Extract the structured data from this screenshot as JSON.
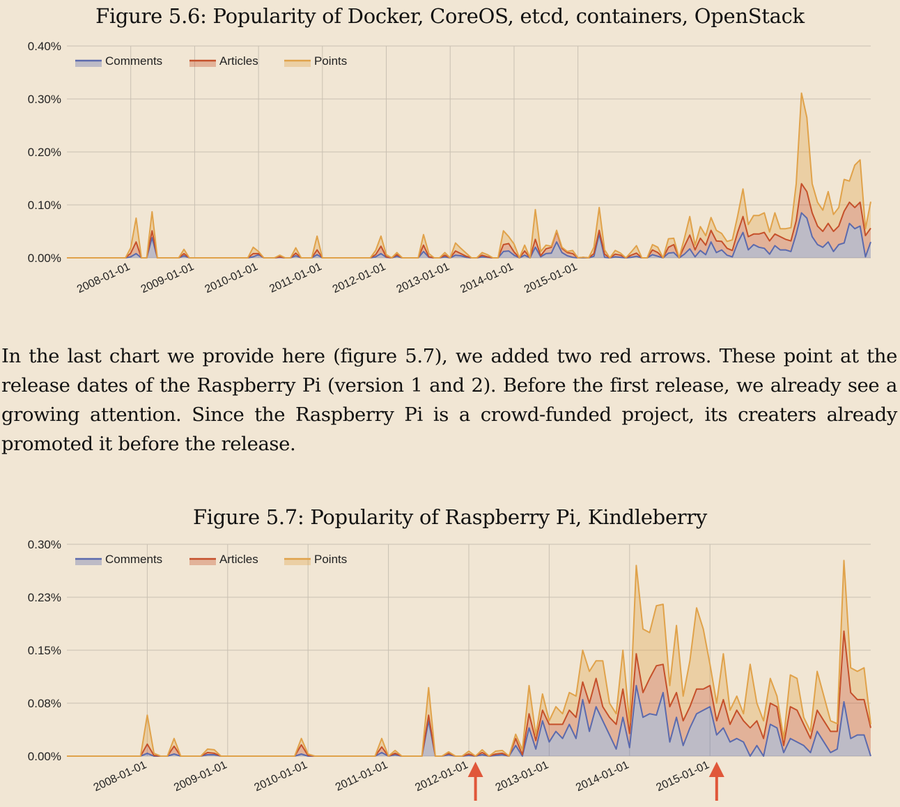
{
  "figure_1": {
    "title": "Figure 5.6: Popularity of Docker, CoreOS, etcd, containers, OpenStack"
  },
  "paragraph": "In the last chart we provide here (figure 5.7), we added two red arrows.  These point at the release dates of the Raspberry Pi (version 1 and 2).  Before the first release, we already see a growing attention.  Since the Raspberry Pi is a crowd-funded project, its creaters already promoted it before the release.",
  "figure_2": {
    "title": "Figure 5.7: Popularity of Raspberry Pi, Kindleberry"
  },
  "colors": {
    "background": "#f1e6d4",
    "grid": "#c9c0b2",
    "comments": "#5b6aad",
    "articles": "#c5502a",
    "points": "#e0a24a",
    "arrow": "#e0573a"
  },
  "chart_data": [
    {
      "type": "area",
      "stacked": true,
      "ylim": [
        0,
        0.4
      ],
      "yticks": [
        "0.40%",
        "0.30%",
        "0.20%",
        "0.10%",
        "0.00%"
      ],
      "yunit": "%",
      "x_start": "2007-01-01",
      "x_step": "1 month",
      "xticks": [
        "2008-01-01",
        "2009-01-01",
        "2010-01-01",
        "2011-01-01",
        "2012-01-01",
        "2013-01-01",
        "2014-01-01",
        "2015-01-01"
      ],
      "legend": [
        "Comments",
        "Articles",
        "Points"
      ],
      "legend_position": "top-left",
      "grid": true,
      "series": [
        {
          "name": "Comments",
          "values": [
            0,
            0,
            0,
            0,
            0,
            0,
            0,
            0,
            0,
            0,
            0,
            0,
            0.002,
            0.008,
            0,
            0,
            0.038,
            0,
            0,
            0,
            0,
            0,
            0.004,
            0,
            0,
            0,
            0,
            0,
            0,
            0,
            0,
            0,
            0,
            0,
            0,
            0.002,
            0.006,
            0,
            0,
            0,
            0.001,
            0,
            0,
            0.004,
            0,
            0,
            0,
            0.006,
            0,
            0,
            0,
            0,
            0,
            0,
            0,
            0,
            0,
            0,
            0.002,
            0.008,
            0.001,
            0,
            0.003,
            0,
            0,
            0,
            0,
            0.012,
            0.001,
            0,
            0,
            0.002,
            0,
            0.005,
            0.004,
            0.001,
            0,
            0,
            0.002,
            0.001,
            0,
            0,
            0.012,
            0.013,
            0.005,
            0,
            0.005,
            0,
            0.02,
            0.002,
            0.008,
            0.009,
            0.03,
            0.01,
            0.004,
            0.001,
            0,
            0,
            0,
            0.003,
            0.045,
            0.001,
            0,
            0.002,
            0.001,
            0,
            0.001,
            0.003,
            0,
            0,
            0.006,
            0.003,
            0,
            0.009,
            0.01,
            0,
            0.007,
            0.017,
            0.002,
            0.014,
            0.006,
            0.03,
            0.01,
            0.015,
            0.005,
            0.002,
            0.028,
            0.048,
            0.015,
            0.025,
            0.02,
            0.018,
            0.007,
            0.023,
            0.015,
            0.015,
            0.012,
            0.045,
            0.085,
            0.075,
            0.04,
            0.025,
            0.02,
            0.03,
            0.012,
            0.025,
            0.028,
            0.065,
            0.055,
            0.06,
            0.002,
            0.03
          ]
        },
        {
          "name": "Articles",
          "values": [
            0,
            0,
            0,
            0,
            0,
            0,
            0,
            0,
            0,
            0,
            0,
            0,
            0.007,
            0.022,
            0,
            0,
            0.013,
            0,
            0,
            0,
            0,
            0,
            0.004,
            0,
            0,
            0,
            0,
            0,
            0,
            0,
            0,
            0,
            0,
            0,
            0,
            0.006,
            0.002,
            0,
            0,
            0,
            0.001,
            0,
            0,
            0.005,
            0,
            0,
            0,
            0.009,
            0,
            0,
            0,
            0,
            0,
            0,
            0,
            0,
            0,
            0,
            0.004,
            0.014,
            0.001,
            0,
            0.003,
            0,
            0,
            0,
            0,
            0.012,
            0.001,
            0,
            0,
            0.003,
            0,
            0.008,
            0.004,
            0.002,
            0,
            0,
            0.003,
            0.001,
            0,
            0,
            0.013,
            0.014,
            0.006,
            0,
            0.008,
            0,
            0.015,
            0.002,
            0.009,
            0.011,
            0.02,
            0.008,
            0.006,
            0.007,
            0,
            0.001,
            0,
            0.005,
            0.007,
            0.006,
            0,
            0.005,
            0.004,
            0,
            0.004,
            0.006,
            0,
            0,
            0.009,
            0.007,
            0,
            0.011,
            0.015,
            0,
            0.015,
            0.026,
            0.013,
            0.023,
            0.018,
            0.022,
            0.022,
            0.016,
            0.013,
            0.012,
            0.02,
            0.03,
            0.025,
            0.02,
            0.025,
            0.03,
            0.025,
            0.022,
            0.025,
            0.02,
            0.02,
            0.025,
            0.055,
            0.05,
            0.045,
            0.035,
            0.03,
            0.035,
            0.038,
            0.035,
            0.06,
            0.04,
            0.04,
            0.045,
            0.04,
            0.026
          ]
        },
        {
          "name": "Points",
          "values": [
            0,
            0,
            0,
            0,
            0,
            0,
            0,
            0,
            0,
            0,
            0,
            0,
            0.01,
            0.045,
            0,
            0,
            0.036,
            0,
            0,
            0,
            0,
            0,
            0.008,
            0,
            0,
            0,
            0,
            0,
            0,
            0,
            0,
            0,
            0,
            0,
            0,
            0.012,
            0.004,
            0,
            0,
            0,
            0.003,
            0,
            0,
            0.01,
            0,
            0,
            0,
            0.026,
            0,
            0,
            0,
            0,
            0,
            0,
            0,
            0,
            0,
            0,
            0.008,
            0.019,
            0.004,
            0,
            0.004,
            0,
            0,
            0,
            0,
            0.02,
            0.006,
            0,
            0,
            0.005,
            0,
            0.015,
            0.01,
            0.006,
            0,
            0,
            0.005,
            0.004,
            0,
            0,
            0.026,
            0.013,
            0.015,
            0,
            0.011,
            0,
            0.056,
            0.008,
            0.007,
            0.002,
            0.002,
            0.002,
            0.002,
            0.006,
            0,
            0,
            0,
            0.012,
            0.043,
            0.008,
            0,
            0.007,
            0.004,
            0,
            0.006,
            0.014,
            0,
            0,
            0.01,
            0.01,
            0,
            0.016,
            0.012,
            0,
            0.015,
            0.035,
            0.009,
            0.022,
            0.018,
            0.024,
            0.02,
            0.015,
            0.013,
            0.02,
            0.031,
            0.052,
            0.023,
            0.035,
            0.035,
            0.037,
            0.017,
            0.04,
            0.015,
            0.02,
            0.025,
            0.07,
            0.171,
            0.14,
            0.055,
            0.045,
            0.04,
            0.06,
            0.032,
            0.035,
            0.06,
            0.04,
            0.08,
            0.08,
            0.013,
            0.05
          ]
        }
      ]
    },
    {
      "type": "area",
      "stacked": true,
      "ylim": [
        0,
        0.3
      ],
      "yticks": [
        "0.30%",
        "0.23%",
        "0.15%",
        "0.08%",
        "0.00%"
      ],
      "yunit": "%",
      "x_start": "2007-01-01",
      "x_step": "1 month",
      "xticks": [
        "2008-01-01",
        "2009-01-01",
        "2010-01-01",
        "2011-01-01",
        "2012-01-01",
        "2013-01-01",
        "2014-01-01",
        "2015-01-01"
      ],
      "legend": [
        "Comments",
        "Articles",
        "Points"
      ],
      "legend_position": "top-left",
      "grid": true,
      "annotations": [
        {
          "type": "arrow",
          "x": "2012-02-01"
        },
        {
          "type": "arrow",
          "x": "2015-02-01"
        }
      ],
      "series": [
        {
          "name": "Comments",
          "values": [
            0,
            0,
            0,
            0,
            0,
            0,
            0,
            0,
            0,
            0,
            0,
            0,
            0.004,
            0,
            0,
            0,
            0.003,
            0,
            0,
            0,
            0,
            0.002,
            0.002,
            0,
            0,
            0,
            0,
            0,
            0,
            0,
            0,
            0,
            0,
            0,
            0,
            0.003,
            0,
            0,
            0,
            0,
            0,
            0,
            0,
            0,
            0,
            0,
            0,
            0.005,
            0,
            0.002,
            0,
            0,
            0,
            0,
            0.05,
            0,
            0,
            0.002,
            0,
            0,
            0.001,
            0,
            0.002,
            0,
            0.001,
            0.002,
            0,
            0.015,
            0,
            0.04,
            0.01,
            0.05,
            0.02,
            0.035,
            0.025,
            0.045,
            0.025,
            0.08,
            0.035,
            0.07,
            0.05,
            0.03,
            0.01,
            0.055,
            0.012,
            0.1,
            0.055,
            0.06,
            0.058,
            0.09,
            0.02,
            0.055,
            0.015,
            0.04,
            0.06,
            0.065,
            0.07,
            0.03,
            0.04,
            0.02,
            0.025,
            0.02,
            0,
            0.015,
            0,
            0.045,
            0.04,
            0.005,
            0.025,
            0.02,
            0.015,
            0.005,
            0.035,
            0.02,
            0.005,
            0.01,
            0.077,
            0.025,
            0.03,
            0.03,
            0
          ]
        },
        {
          "name": "Articles",
          "values": [
            0,
            0,
            0,
            0,
            0,
            0,
            0,
            0,
            0,
            0,
            0,
            0,
            0.013,
            0.001,
            0,
            0,
            0.011,
            0,
            0,
            0,
            0,
            0.003,
            0.002,
            0,
            0,
            0,
            0,
            0,
            0,
            0,
            0,
            0,
            0,
            0,
            0,
            0.013,
            0.001,
            0,
            0,
            0,
            0,
            0,
            0,
            0,
            0,
            0,
            0,
            0.008,
            0,
            0.002,
            0,
            0,
            0,
            0,
            0.008,
            0,
            0,
            0.002,
            0,
            0,
            0.002,
            0,
            0.003,
            0,
            0.002,
            0.002,
            0,
            0.01,
            0.002,
            0.02,
            0.012,
            0.015,
            0.025,
            0.01,
            0.02,
            0.02,
            0.03,
            0.025,
            0.04,
            0.04,
            0.02,
            0.025,
            0.035,
            0.04,
            0.02,
            0.045,
            0.035,
            0.05,
            0.07,
            0.04,
            0.05,
            0.035,
            0.035,
            0.03,
            0.035,
            0.03,
            0.03,
            0.02,
            0.04,
            0.025,
            0.04,
            0.03,
            0.04,
            0.035,
            0.025,
            0.03,
            0.03,
            0.01,
            0.045,
            0.045,
            0.03,
            0.02,
            0.03,
            0.03,
            0.03,
            0.025,
            0.1,
            0.065,
            0.05,
            0.05,
            0.04
          ]
        },
        {
          "name": "Points",
          "values": [
            0,
            0,
            0,
            0,
            0,
            0,
            0,
            0,
            0,
            0,
            0,
            0,
            0.041,
            0.003,
            0,
            0,
            0.011,
            0,
            0,
            0,
            0,
            0.005,
            0.005,
            0,
            0,
            0,
            0,
            0,
            0,
            0,
            0,
            0,
            0,
            0,
            0,
            0.009,
            0.002,
            0,
            0,
            0,
            0,
            0,
            0,
            0,
            0,
            0,
            0,
            0.012,
            0,
            0.004,
            0,
            0,
            0,
            0,
            0.039,
            0,
            0,
            0.002,
            0,
            0,
            0.004,
            0,
            0.004,
            0,
            0.004,
            0.004,
            0,
            0.006,
            0.007,
            0.04,
            0.008,
            0.023,
            0.005,
            0.025,
            0.015,
            0.025,
            0.03,
            0.045,
            0.045,
            0.025,
            0.065,
            0.02,
            0.015,
            0.055,
            0.015,
            0.125,
            0.09,
            0.065,
            0.085,
            0.085,
            0.03,
            0.095,
            0.035,
            0.065,
            0.115,
            0.085,
            0.03,
            0.025,
            0.065,
            0.02,
            0.02,
            0.01,
            0.09,
            0.025,
            0.025,
            0.035,
            0.015,
            0.01,
            0.045,
            0.045,
            0.01,
            0.01,
            0.055,
            0.035,
            0.015,
            0.011,
            0.1,
            0.035,
            0.04,
            0.045,
            0.005
          ]
        }
      ]
    }
  ]
}
